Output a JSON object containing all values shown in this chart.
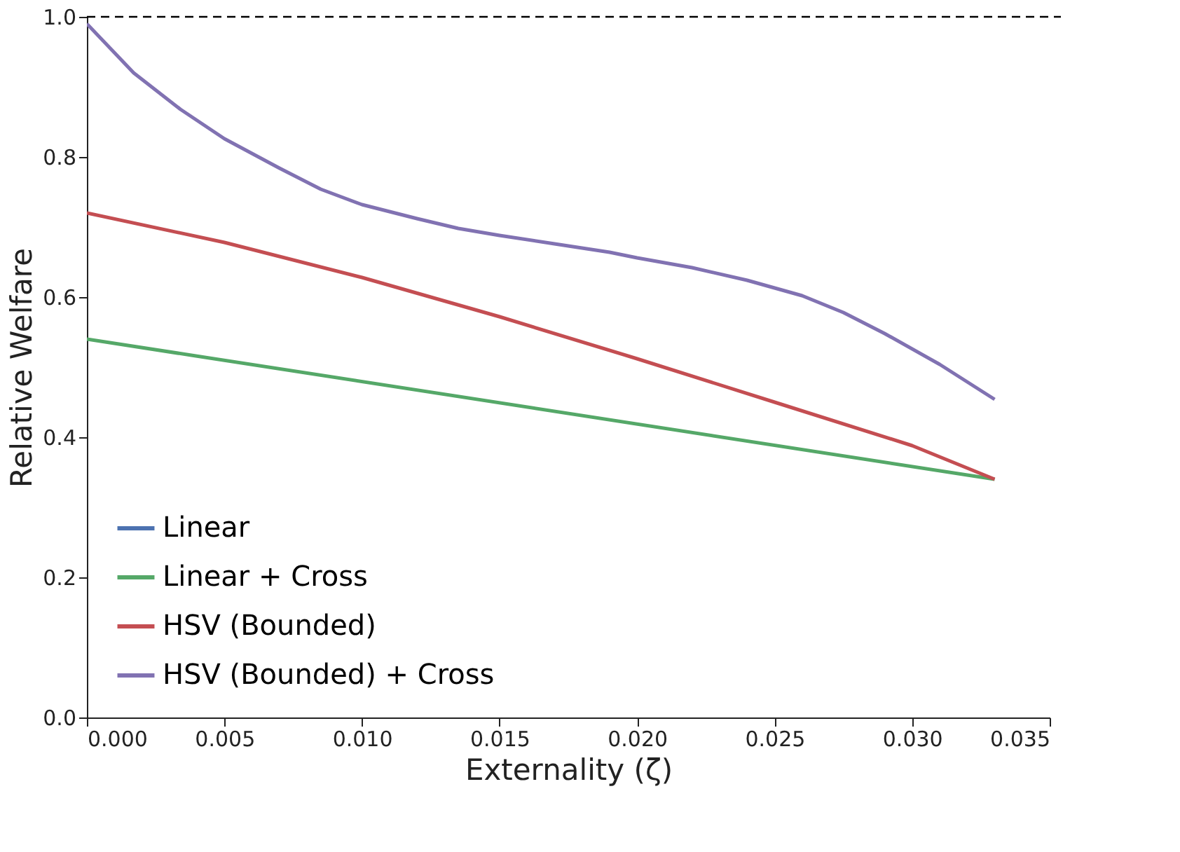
{
  "chart_data": {
    "type": "line",
    "xlabel": "Externality (ζ)",
    "ylabel": "Relative Welfare",
    "xlim": [
      0,
      0.035
    ],
    "ylim": [
      0,
      1.0
    ],
    "xticks": [
      {
        "value": 0,
        "label": "0.000"
      },
      {
        "value": 0.005,
        "label": "0.005"
      },
      {
        "value": 0.01,
        "label": "0.010"
      },
      {
        "value": 0.015,
        "label": "0.015"
      },
      {
        "value": 0.02,
        "label": "0.020"
      },
      {
        "value": 0.025,
        "label": "0.025"
      },
      {
        "value": 0.03,
        "label": "0.030"
      },
      {
        "value": 0.035,
        "label": "0.035"
      }
    ],
    "yticks": [
      {
        "value": 0,
        "label": "0.0"
      },
      {
        "value": 0.2,
        "label": "0.2"
      },
      {
        "value": 0.4,
        "label": "0.4"
      },
      {
        "value": 0.6,
        "label": "0.6"
      },
      {
        "value": 0.8,
        "label": "0.8"
      },
      {
        "value": 1.0,
        "label": "1.0"
      }
    ],
    "grid": false,
    "legend": "bottom left",
    "marker": "none",
    "line_style": "solid",
    "ref_lines": [
      {
        "axis": "y",
        "value": 1.0,
        "color": "#000000",
        "line_style": "dashed"
      }
    ],
    "series": [
      {
        "name": "Linear",
        "color": "#4c72b0"
      },
      {
        "name": "Linear + Cross",
        "color": "#55a868",
        "x": [
          0,
          0.033
        ],
        "values": [
          0.54,
          0.34
        ]
      },
      {
        "name": "HSV (Bounded)",
        "color": "#c44e52",
        "x": [
          0,
          0.005,
          0.01,
          0.015,
          0.02,
          0.025,
          0.03,
          0.033
        ],
        "values": [
          0.72,
          0.678,
          0.628,
          0.572,
          0.512,
          0.45,
          0.388,
          0.34
        ]
      },
      {
        "name": "HSV (Bounded) + Cross",
        "color": "#8172b2",
        "x": [
          0,
          0.0017,
          0.0034,
          0.005,
          0.007,
          0.0085,
          0.01,
          0.012,
          0.0135,
          0.015,
          0.017,
          0.019,
          0.02,
          0.022,
          0.024,
          0.026,
          0.0275,
          0.029,
          0.031,
          0.033
        ],
        "values": [
          0.99,
          0.92,
          0.868,
          0.826,
          0.784,
          0.754,
          0.732,
          0.712,
          0.698,
          0.688,
          0.676,
          0.664,
          0.656,
          0.642,
          0.624,
          0.602,
          0.578,
          0.548,
          0.504,
          0.454
        ]
      }
    ]
  }
}
